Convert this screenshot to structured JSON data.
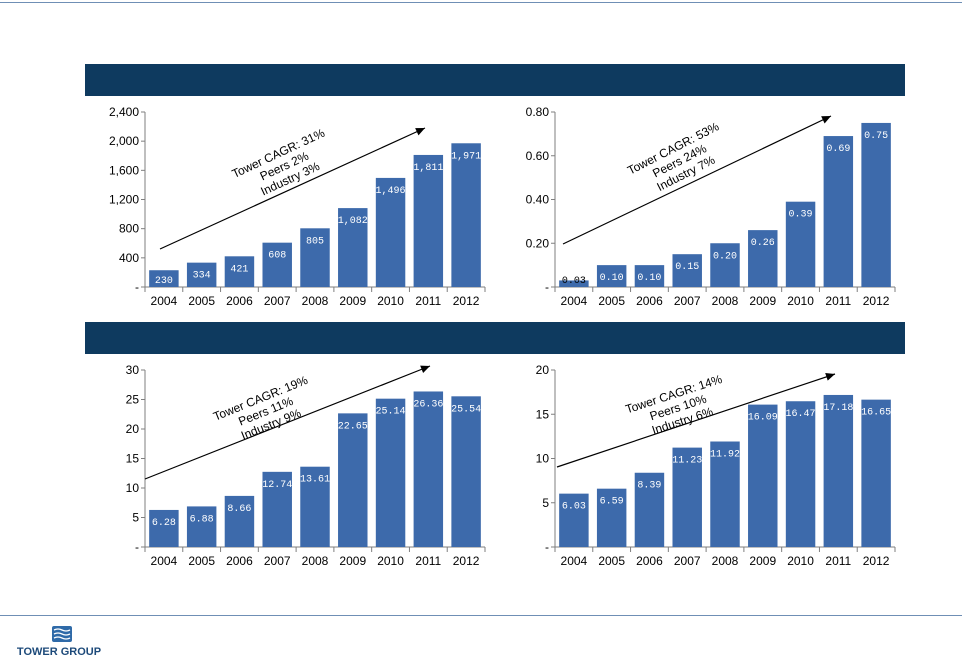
{
  "colors": {
    "header": "#0e3a5f",
    "bar": "#3d6aab",
    "axis": "#7f7f7f",
    "text": "#000000"
  },
  "logo": {
    "text": "TOWER GROUP",
    "icon": "wave-logo-icon"
  },
  "chart_data": [
    {
      "type": "bar",
      "title": "",
      "categories": [
        "2004",
        "2005",
        "2006",
        "2007",
        "2008",
        "2009",
        "2010",
        "2011",
        "2012"
      ],
      "values": [
        230,
        334,
        421,
        608,
        805,
        1082,
        1496,
        1811,
        1971
      ],
      "data_labels": [
        "230",
        "334",
        "421",
        "608",
        "805",
        "1,082",
        "1,496",
        "1,811",
        "1,971"
      ],
      "ylim": [
        0,
        2400
      ],
      "yticks": [
        0,
        400,
        800,
        1200,
        1600,
        2000,
        2400
      ],
      "ytick_labels": [
        "-",
        "400",
        "800",
        "1,200",
        "1,600",
        "2,000",
        "2,400"
      ],
      "annotation": [
        "Tower CAGR: 31%",
        "Peers 2%",
        "Industry 3%"
      ],
      "grid": false
    },
    {
      "type": "bar",
      "title": "",
      "categories": [
        "2004",
        "2005",
        "2006",
        "2007",
        "2008",
        "2009",
        "2010",
        "2011",
        "2012"
      ],
      "values": [
        0.03,
        0.1,
        0.1,
        0.15,
        0.2,
        0.26,
        0.39,
        0.69,
        0.75
      ],
      "data_labels": [
        "0.03",
        "0.10",
        "0.10",
        "0.15",
        "0.20",
        "0.26",
        "0.39",
        "0.69",
        "0.75"
      ],
      "ylim": [
        0,
        0.8
      ],
      "yticks": [
        0,
        0.2,
        0.4,
        0.6,
        0.8
      ],
      "ytick_labels": [
        "-",
        "0.20",
        "0.40",
        "0.60",
        "0.80"
      ],
      "annotation": [
        "Tower CAGR: 53%",
        "Peers 24%",
        "Industry 7%"
      ],
      "grid": false
    },
    {
      "type": "bar",
      "title": "",
      "categories": [
        "2004",
        "2005",
        "2006",
        "2007",
        "2008",
        "2009",
        "2010",
        "2011",
        "2012"
      ],
      "values": [
        6.28,
        6.88,
        8.66,
        12.74,
        13.61,
        22.65,
        25.14,
        26.36,
        25.54
      ],
      "data_labels": [
        "6.28",
        "6.88",
        "8.66",
        "12.74",
        "13.61",
        "22.65",
        "25.14",
        "26.36",
        "25.54"
      ],
      "ylim": [
        0,
        30
      ],
      "yticks": [
        0,
        5,
        10,
        15,
        20,
        25,
        30
      ],
      "ytick_labels": [
        "-",
        "5",
        "10",
        "15",
        "20",
        "25",
        "30"
      ],
      "annotation": [
        "Tower CAGR: 19%",
        "Peers 11%",
        "Industry 9%"
      ],
      "grid": false
    },
    {
      "type": "bar",
      "title": "",
      "categories": [
        "2004",
        "2005",
        "2006",
        "2007",
        "2008",
        "2009",
        "2010",
        "2011",
        "2012"
      ],
      "values": [
        6.03,
        6.59,
        8.39,
        11.23,
        11.92,
        16.09,
        16.47,
        17.18,
        16.65
      ],
      "data_labels": [
        "6.03",
        "6.59",
        "8.39",
        "11.23",
        "11.92",
        "16.09",
        "16.47",
        "17.18",
        "16.65"
      ],
      "ylim": [
        0,
        20
      ],
      "yticks": [
        0,
        5,
        10,
        15,
        20
      ],
      "ytick_labels": [
        "-",
        "5",
        "10",
        "15",
        "20"
      ],
      "annotation": [
        "Tower CAGR: 14%",
        "Peers 10%",
        "Industry 6%"
      ],
      "grid": false
    }
  ]
}
